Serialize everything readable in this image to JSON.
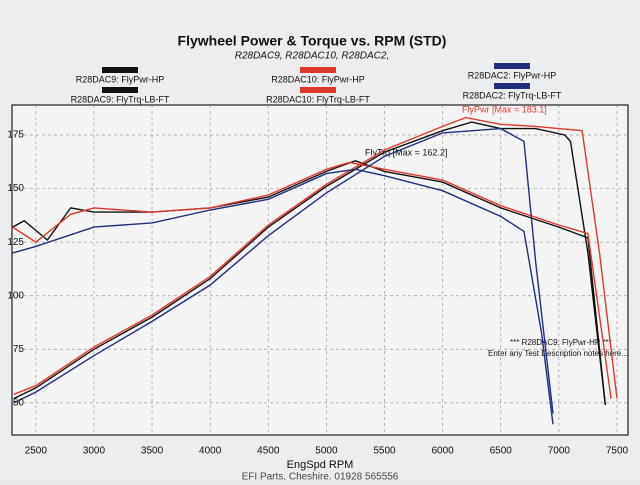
{
  "chart_data": {
    "type": "line",
    "title": "Flywheel Power & Torque vs. RPM (STD)",
    "subtitle": "R28DAC9, R28DAC10, R28DAC2,",
    "x_label": "EngSpd RPM",
    "annotations": [
      "FlyTrq [Max = 162.2]",
      "FlyPwr [Max = 183.1]",
      "*** R28DAC9: FlyPwr-HP ***",
      "Enter any Test Description notes here...",
      "EFI Parts, Cheshire. 01928 565556"
    ],
    "xlim": [
      2295,
      7595
    ],
    "xticks": [
      2500,
      3000,
      3500,
      4000,
      4500,
      5000,
      5500,
      6000,
      6500,
      7000,
      7500
    ],
    "ylim": [
      35,
      189
    ],
    "yticks": [
      50,
      75,
      100,
      125,
      150,
      175
    ],
    "grid": true,
    "series": [
      {
        "name": "R28DAC9: FlyPwr-HP",
        "color": "#111111",
        "x": [
          2310,
          2500,
          3000,
          3500,
          4000,
          4500,
          5000,
          5500,
          6000,
          6250,
          6500,
          6800,
          7050,
          7100,
          7250,
          7400
        ],
        "values": [
          52,
          57,
          75,
          90,
          108,
          132,
          151,
          167,
          177,
          181,
          178,
          178,
          175,
          172,
          120,
          49
        ]
      },
      {
        "name": "R28DAC9: FlyTrq-LB-FT",
        "color": "#111111",
        "x": [
          2300,
          2400,
          2600,
          2800,
          3000,
          3500,
          4000,
          4500,
          5000,
          5250,
          5500,
          6000,
          6500,
          7000,
          7250,
          7400
        ],
        "values": [
          132,
          135,
          126,
          141,
          139,
          139,
          141,
          146,
          158,
          163,
          158,
          153,
          141,
          132,
          127,
          49
        ]
      },
      {
        "name": "R28DAC10: FlyPwr-HP",
        "color": "#e03a2f",
        "x": [
          2310,
          2500,
          3000,
          3500,
          4000,
          4500,
          5000,
          5500,
          6000,
          6200,
          6500,
          6800,
          7000,
          7200,
          7350,
          7500
        ],
        "values": [
          54,
          58,
          76,
          91,
          109,
          133,
          152,
          168,
          179,
          183.1,
          180,
          179,
          178,
          177,
          120,
          52
        ]
      },
      {
        "name": "R28DAC10: FlyTrq-LB-FT",
        "color": "#e03a2f",
        "x": [
          2300,
          2500,
          2800,
          3000,
          3500,
          4000,
          4500,
          5000,
          5200,
          5500,
          6000,
          6500,
          7000,
          7250,
          7450
        ],
        "values": [
          132,
          125,
          138,
          141,
          139,
          141,
          147,
          159,
          162.2,
          159,
          154,
          142,
          133,
          129,
          52
        ]
      },
      {
        "name": "R28DAC2: FlyPwr-HP",
        "color": "#1f2f7a",
        "x": [
          2310,
          2500,
          3000,
          3500,
          4000,
          4500,
          5000,
          5500,
          6000,
          6500,
          6700,
          6800,
          6950
        ],
        "values": [
          50,
          55,
          72,
          88,
          105,
          128,
          148,
          165,
          176,
          178,
          172,
          116,
          45
        ]
      },
      {
        "name": "R28DAC2: FlyTrq-LB-FT",
        "color": "#1f2f7a",
        "x": [
          2300,
          2500,
          3000,
          3500,
          4000,
          4500,
          5000,
          5250,
          5500,
          6000,
          6500,
          6700,
          6850,
          6950
        ],
        "values": [
          120,
          123,
          132,
          134,
          140,
          145,
          157,
          159,
          156,
          149,
          137,
          130,
          83,
          40
        ]
      }
    ]
  }
}
